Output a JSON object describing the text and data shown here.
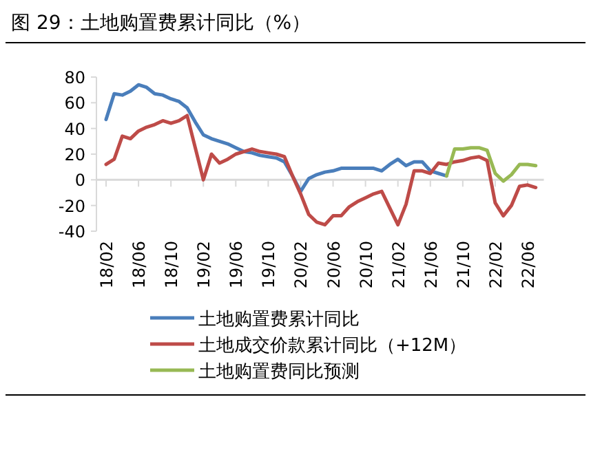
{
  "chart_data": {
    "type": "line",
    "title": "图 29：土地购置费累计同比（%）",
    "categories": [
      "18/02",
      null,
      null,
      null,
      "18/06",
      null,
      null,
      null,
      "18/10",
      null,
      null,
      null,
      "19/02",
      null,
      null,
      null,
      "19/06",
      null,
      null,
      null,
      "19/10",
      null,
      null,
      null,
      "20/02",
      null,
      null,
      null,
      "20/06",
      null,
      null,
      null,
      "20/10",
      null,
      null,
      null,
      "21/02",
      null,
      null,
      null,
      "21/06",
      null,
      null,
      null,
      "21/10",
      null,
      null,
      null,
      "22/02",
      null,
      null,
      null,
      "22/06",
      null
    ],
    "series": [
      {
        "name": "土地购置费累计同比",
        "color": "#4a7ebb",
        "values": [
          47,
          67,
          66,
          69,
          74,
          72,
          67,
          66,
          63,
          61,
          56,
          45,
          35,
          32,
          30,
          28,
          25,
          22,
          21,
          19,
          18,
          17,
          14,
          3,
          -9,
          1,
          4,
          6,
          7,
          9,
          9,
          9,
          9,
          9,
          7,
          12,
          16,
          11,
          14,
          14,
          7,
          5,
          3,
          null,
          null,
          null,
          null,
          null,
          null,
          null,
          null,
          null,
          null,
          null
        ]
      },
      {
        "name": "土地成交价款累计同比（+12M）",
        "color": "#be4b48",
        "values": [
          12,
          16,
          34,
          32,
          38,
          41,
          43,
          46,
          44,
          46,
          50,
          25,
          0,
          20,
          13,
          16,
          20,
          22,
          24,
          22,
          21,
          20,
          18,
          3,
          -11,
          -27,
          -33,
          -35,
          -28,
          -28,
          -21,
          -17,
          -14,
          -11,
          -9,
          -22,
          -35,
          -19,
          7,
          7,
          5,
          13,
          12,
          14,
          15,
          17,
          18,
          15,
          -18,
          -28,
          -20,
          -5,
          -4,
          -6
        ]
      },
      {
        "name": "土地购置费同比预测",
        "color": "#98b954",
        "values": [
          null,
          null,
          null,
          null,
          null,
          null,
          null,
          null,
          null,
          null,
          null,
          null,
          null,
          null,
          null,
          null,
          null,
          null,
          null,
          null,
          null,
          null,
          null,
          null,
          null,
          null,
          null,
          null,
          null,
          null,
          null,
          null,
          null,
          null,
          null,
          null,
          null,
          null,
          null,
          null,
          null,
          null,
          3,
          24,
          24,
          25,
          25,
          23,
          5,
          -1,
          4,
          12,
          12,
          11
        ]
      }
    ],
    "ylim": [
      -40,
      80
    ],
    "yticks": [
      -40,
      -20,
      0,
      20,
      40,
      60,
      80
    ],
    "legend": "bottom",
    "line_style": "solid",
    "marker": "none"
  }
}
